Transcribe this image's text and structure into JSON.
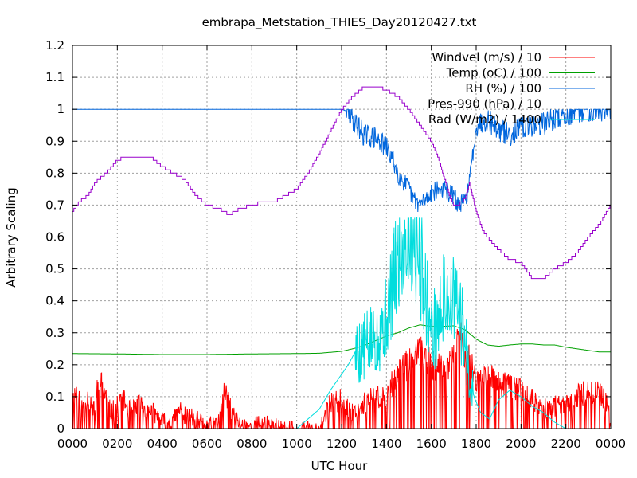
{
  "chart_data": {
    "type": "line",
    "title": "embrapa_Metstation_THIES_Day20120427.txt",
    "xlabel": "UTC Hour",
    "ylabel": "Arbitrary Scaling",
    "x_ticks": [
      "0000",
      "0200",
      "0400",
      "0600",
      "0800",
      "1000",
      "1200",
      "1400",
      "1600",
      "1800",
      "2000",
      "2200",
      "0000"
    ],
    "x_range_hours": [
      0,
      24
    ],
    "y_ticks": [
      "0",
      "0.1",
      "0.2",
      "0.3",
      "0.4",
      "0.5",
      "0.6",
      "0.7",
      "0.8",
      "0.9",
      "1",
      "1.1",
      "1.2"
    ],
    "ylim": [
      0,
      1.2
    ],
    "grid": true,
    "legend_position": "top-right",
    "series": [
      {
        "name": "Windvel (m/s) / 10",
        "color": "#ff0000",
        "style": "noisy",
        "seed": 11,
        "noise": 0.06,
        "clip": [
          0,
          0.46
        ],
        "x": [
          0,
          0.2,
          0.4,
          0.7,
          1.0,
          1.1,
          1.3,
          1.5,
          1.7,
          2.0,
          2.2,
          2.5,
          2.7,
          3.0,
          3.3,
          3.5,
          4.0,
          4.5,
          4.8,
          5.0,
          5.3,
          5.5,
          6.0,
          6.5,
          6.8,
          7.0,
          7.3,
          7.5,
          8.0,
          8.5,
          9.0,
          9.5,
          10.0,
          11.0,
          11.5,
          12.0,
          12.5,
          13.0,
          13.5,
          14.0,
          14.5,
          15.0,
          15.5,
          16.0,
          16.5,
          17.0,
          17.2,
          17.5,
          18.0,
          18.5,
          19.0,
          19.5,
          20.0,
          20.5,
          21.0,
          21.5,
          22.0,
          22.5,
          23.0,
          23.5,
          23.8,
          24.0
        ],
        "y": [
          0.09,
          0.12,
          0.07,
          0.1,
          0.05,
          0.12,
          0.14,
          0.1,
          0.05,
          0.07,
          0.1,
          0.06,
          0.06,
          0.08,
          0.05,
          0.06,
          0.02,
          0.03,
          0.06,
          0.04,
          0.04,
          0.03,
          0.01,
          0.02,
          0.12,
          0.07,
          0.03,
          0.01,
          0.01,
          0.02,
          0.01,
          0.0,
          0.0,
          0.0,
          0.08,
          0.09,
          0.05,
          0.08,
          0.1,
          0.1,
          0.18,
          0.2,
          0.24,
          0.2,
          0.18,
          0.22,
          0.3,
          0.24,
          0.16,
          0.17,
          0.14,
          0.14,
          0.12,
          0.09,
          0.06,
          0.07,
          0.07,
          0.1,
          0.12,
          0.11,
          0.08,
          0.02
        ]
      },
      {
        "name": "Temp (oC) / 100",
        "color": "#00a000",
        "style": "smooth",
        "x": [
          0,
          2,
          4,
          6,
          8,
          10,
          11,
          12,
          12.5,
          13,
          13.5,
          14,
          14.5,
          15,
          15.5,
          16,
          16.5,
          17,
          17.5,
          18,
          18.5,
          19,
          19.5,
          20,
          20.5,
          21,
          21.5,
          22,
          22.5,
          23,
          23.5,
          24
        ],
        "y": [
          0.235,
          0.234,
          0.232,
          0.232,
          0.234,
          0.235,
          0.236,
          0.242,
          0.25,
          0.26,
          0.275,
          0.29,
          0.3,
          0.315,
          0.325,
          0.32,
          0.32,
          0.322,
          0.31,
          0.28,
          0.262,
          0.258,
          0.262,
          0.265,
          0.265,
          0.262,
          0.262,
          0.255,
          0.25,
          0.245,
          0.24,
          0.24
        ]
      },
      {
        "name": "RH (%) / 100",
        "color": "#0066dd",
        "style": "noisy",
        "seed": 29,
        "noise": 0.015,
        "noise_from": 12.2,
        "clip": [
          0,
          1.0
        ],
        "x": [
          0,
          12.0,
          12.2,
          12.5,
          13.0,
          13.5,
          14.0,
          14.3,
          14.5,
          15.0,
          15.2,
          15.5,
          16.0,
          16.5,
          17.0,
          17.2,
          17.5,
          17.7,
          18.0,
          18.5,
          19.0,
          19.5,
          20.0,
          20.5,
          21.0,
          21.5,
          22.0,
          22.5,
          23.0,
          24.0
        ],
        "y": [
          1.0,
          1.0,
          0.995,
          0.97,
          0.92,
          0.91,
          0.88,
          0.84,
          0.8,
          0.75,
          0.72,
          0.7,
          0.74,
          0.75,
          0.73,
          0.7,
          0.71,
          0.77,
          0.95,
          0.97,
          0.935,
          0.92,
          0.94,
          0.95,
          0.955,
          0.97,
          0.98,
          0.99,
          1.0,
          1.0
        ]
      },
      {
        "name": "Pres-990 (hPa) / 10",
        "color": "#9900cc",
        "style": "stepped",
        "step": 0.01,
        "x": [
          0,
          0.3,
          0.7,
          1.0,
          1.5,
          2.0,
          2.3,
          2.6,
          3.0,
          3.5,
          4.0,
          4.5,
          5.0,
          5.5,
          6.0,
          6.5,
          7.0,
          7.5,
          8.0,
          8.5,
          9.0,
          9.5,
          10.0,
          10.5,
          11.0,
          11.5,
          12.0,
          12.5,
          13.0,
          13.5,
          14.0,
          14.5,
          15.0,
          15.5,
          16.0,
          16.3,
          16.5,
          16.7,
          16.8,
          17.0,
          17.2,
          17.5,
          17.7,
          18.0,
          18.3,
          18.5,
          19.0,
          19.5,
          20.0,
          20.5,
          21.0,
          21.5,
          22.0,
          22.5,
          23.0,
          23.5,
          24.0
        ],
        "y": [
          0.68,
          0.71,
          0.73,
          0.77,
          0.8,
          0.84,
          0.85,
          0.85,
          0.85,
          0.85,
          0.82,
          0.8,
          0.78,
          0.73,
          0.7,
          0.69,
          0.67,
          0.69,
          0.7,
          0.71,
          0.71,
          0.73,
          0.75,
          0.8,
          0.86,
          0.93,
          1.0,
          1.04,
          1.07,
          1.075,
          1.06,
          1.04,
          1.0,
          0.95,
          0.9,
          0.85,
          0.8,
          0.76,
          0.73,
          0.7,
          0.7,
          0.72,
          0.77,
          0.68,
          0.62,
          0.6,
          0.56,
          0.53,
          0.52,
          0.47,
          0.47,
          0.5,
          0.52,
          0.55,
          0.6,
          0.64,
          0.7
        ]
      },
      {
        "name": "Rad (W/m2) / 1400",
        "color": "#00dddd",
        "style": "noisy",
        "seed": 5,
        "noise": 0.12,
        "noise_from": 12.6,
        "noise_to": 17.9,
        "clip": [
          0,
          0.66
        ],
        "x": [
          0,
          10.0,
          10.5,
          11.0,
          11.5,
          12.0,
          12.3,
          12.6,
          13.0,
          13.5,
          14.0,
          14.3,
          14.6,
          15.0,
          15.3,
          15.6,
          16.0,
          16.3,
          16.6,
          17.0,
          17.3,
          17.6,
          17.9,
          18.2,
          18.6,
          19.0,
          19.5,
          20.0,
          20.5,
          21.0,
          21.5,
          22.0,
          22.2,
          24.0
        ],
        "y": [
          0,
          0,
          0.03,
          0.06,
          0.12,
          0.17,
          0.2,
          0.24,
          0.25,
          0.28,
          0.35,
          0.45,
          0.55,
          0.62,
          0.58,
          0.5,
          0.3,
          0.33,
          0.42,
          0.4,
          0.35,
          0.22,
          0.1,
          0.05,
          0.03,
          0.09,
          0.12,
          0.1,
          0.07,
          0.05,
          0.02,
          0.0,
          0.0,
          0.0
        ]
      }
    ]
  }
}
